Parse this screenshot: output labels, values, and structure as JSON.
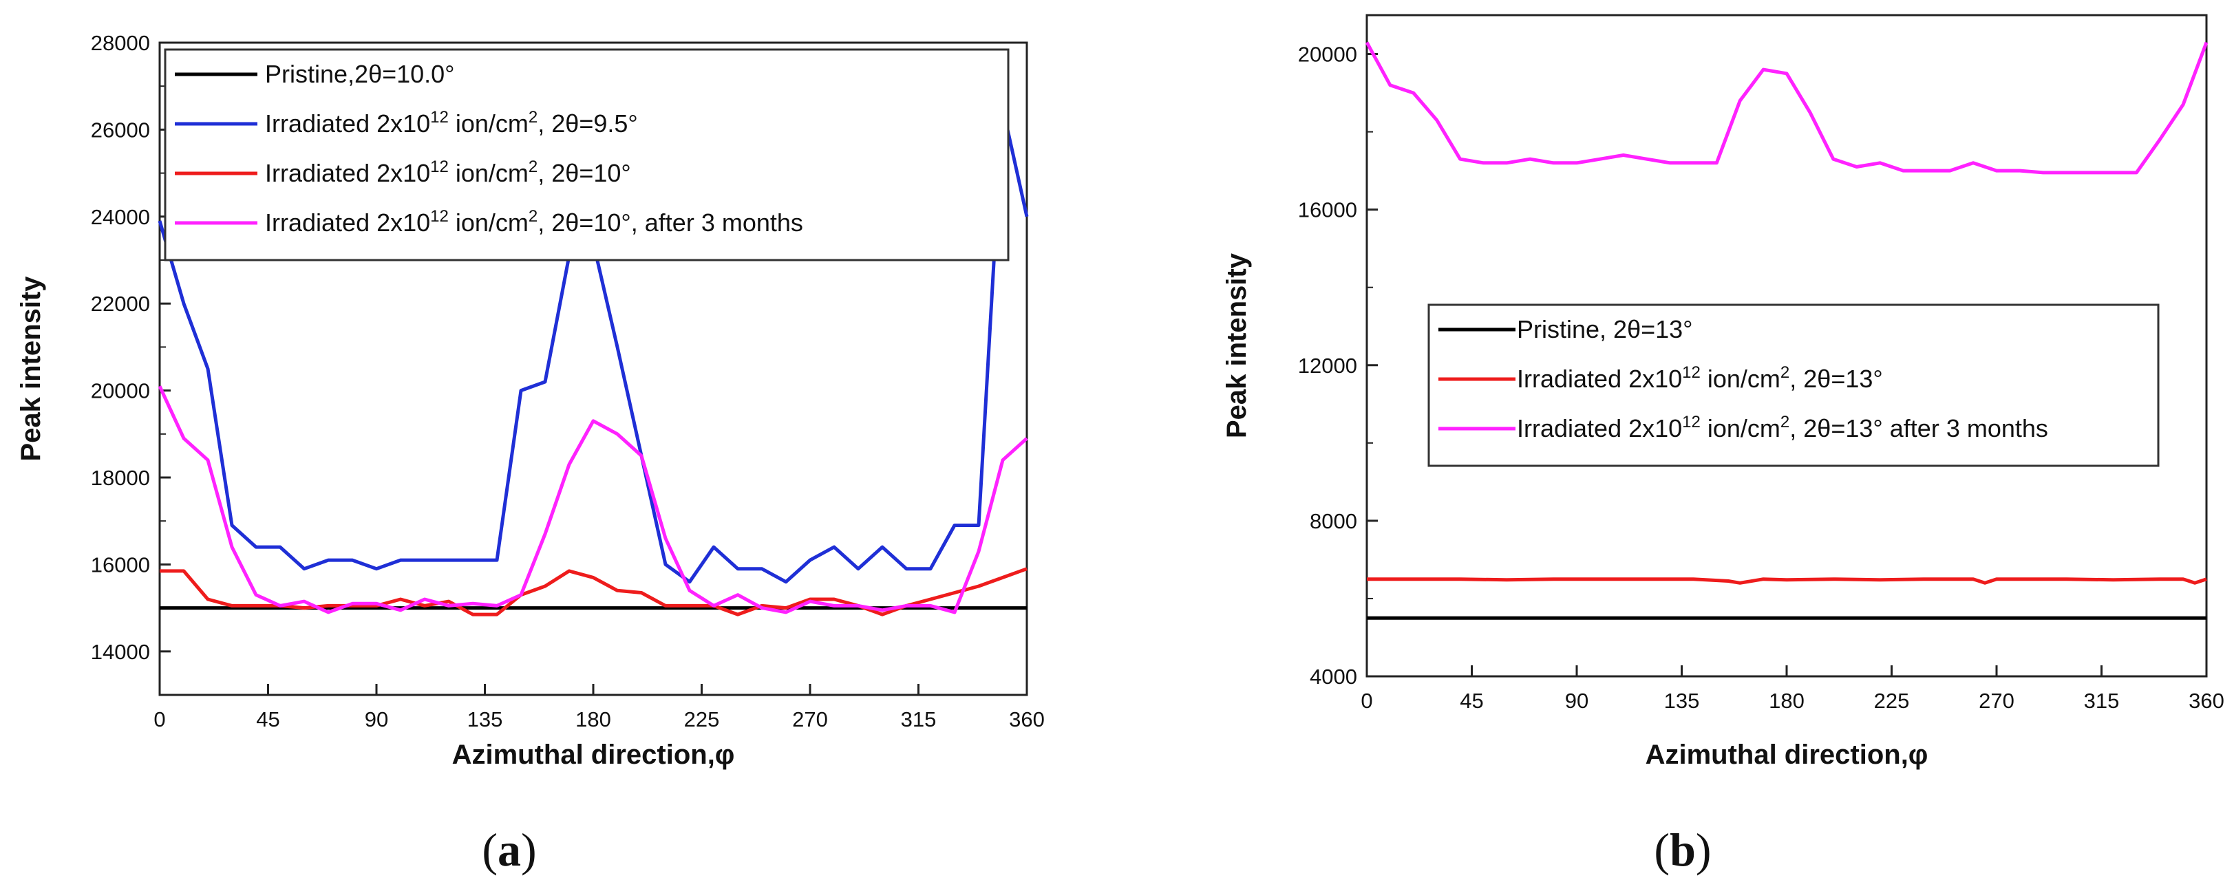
{
  "chart_data": [
    {
      "type": "line",
      "panel": "a",
      "caption_open": "(",
      "caption_letter": "a",
      "caption_close": ")",
      "xlabel": "Azimuthal direction,φ",
      "ylabel": "Peak intensity",
      "xlim": [
        0,
        360
      ],
      "ylim": [
        13000,
        28000
      ],
      "xticks": [
        0,
        45,
        90,
        135,
        180,
        225,
        270,
        315,
        360
      ],
      "yticks": [
        14000,
        16000,
        18000,
        20000,
        22000,
        24000,
        26000,
        28000
      ],
      "legend_position": "top-left",
      "series": [
        {
          "name": "Pristine,2θ=10.0°",
          "color": "#000000",
          "x": [
            0,
            360
          ],
          "y": [
            15000,
            15000
          ]
        },
        {
          "name": "Irradiated 2x10^12 ion/cm^2, 2θ=9.5°",
          "legend": {
            "pre": "Irradiated 2x10",
            "sup1": "12",
            "mid": " ion/cm",
            "sup2": "2",
            "post": ", 2θ=9.5°"
          },
          "color": "#1f2fd6",
          "x": [
            0,
            10,
            20,
            30,
            40,
            50,
            60,
            70,
            80,
            90,
            100,
            110,
            120,
            130,
            140,
            150,
            160,
            170,
            180,
            190,
            200,
            210,
            220,
            230,
            240,
            250,
            260,
            270,
            280,
            290,
            300,
            310,
            320,
            330,
            340,
            350,
            360
          ],
          "y": [
            23900,
            22000,
            20500,
            16900,
            16400,
            16400,
            15900,
            16100,
            16100,
            15900,
            16100,
            16100,
            16100,
            16100,
            16100,
            20000,
            20200,
            23100,
            23400,
            21000,
            18500,
            16000,
            15600,
            16400,
            15900,
            15900,
            15600,
            16100,
            16400,
            15900,
            16400,
            15900,
            15900,
            16900,
            16900,
            26500,
            24000
          ]
        },
        {
          "name": "Irradiated 2x10^12 ion/cm^2, 2θ=10°",
          "legend": {
            "pre": "Irradiated 2x10",
            "sup1": "12",
            "mid": " ion/cm",
            "sup2": "2",
            "post": ", 2θ=10°"
          },
          "color": "#ee1c1c",
          "x": [
            0,
            10,
            20,
            30,
            40,
            50,
            60,
            70,
            80,
            90,
            100,
            110,
            120,
            130,
            140,
            150,
            160,
            170,
            180,
            190,
            200,
            210,
            220,
            230,
            240,
            250,
            260,
            270,
            280,
            290,
            300,
            310,
            320,
            330,
            340,
            350,
            360
          ],
          "y": [
            15850,
            15850,
            15200,
            15050,
            15050,
            15050,
            15000,
            15050,
            15050,
            15050,
            15200,
            15050,
            15150,
            14850,
            14850,
            15300,
            15500,
            15850,
            15700,
            15400,
            15350,
            15050,
            15050,
            15050,
            14850,
            15050,
            15000,
            15200,
            15200,
            15050,
            14850,
            15050,
            15200,
            15350,
            15500,
            15700,
            15900
          ]
        },
        {
          "name": "Irradiated 2x10^12 ion/cm^2, 2θ=10°, after 3 months",
          "legend": {
            "pre": "Irradiated 2x10",
            "sup1": "12",
            "mid": " ion/cm",
            "sup2": "2",
            "post": ", 2θ=10°,  after 3 months"
          },
          "color": "#ff22ff",
          "x": [
            0,
            10,
            20,
            30,
            40,
            50,
            60,
            70,
            80,
            90,
            100,
            110,
            120,
            130,
            140,
            150,
            160,
            170,
            180,
            190,
            200,
            210,
            220,
            230,
            240,
            250,
            260,
            270,
            280,
            290,
            300,
            310,
            320,
            330,
            340,
            350,
            360
          ],
          "y": [
            20100,
            18900,
            18400,
            16400,
            15300,
            15050,
            15150,
            14900,
            15100,
            15100,
            14950,
            15200,
            15050,
            15100,
            15050,
            15300,
            16700,
            18300,
            19300,
            19000,
            18500,
            16600,
            15400,
            15050,
            15300,
            15000,
            14900,
            15150,
            15050,
            15050,
            14950,
            15050,
            15050,
            14900,
            16300,
            18400,
            18900
          ]
        }
      ]
    },
    {
      "type": "line",
      "panel": "b",
      "caption_open": "(",
      "caption_letter": "b",
      "caption_close": ")",
      "xlabel": "Azimuthal direction,φ",
      "ylabel": "Peak intensity",
      "xlim": [
        0,
        360
      ],
      "ylim": [
        4000,
        21000
      ],
      "xticks": [
        0,
        45,
        90,
        135,
        180,
        225,
        270,
        315,
        360
      ],
      "yticks": [
        4000,
        8000,
        12000,
        16000,
        20000
      ],
      "legend_position": "center",
      "series": [
        {
          "name": "Pristine, 2θ=13°",
          "color": "#000000",
          "x": [
            0,
            360
          ],
          "y": [
            5500,
            5500
          ]
        },
        {
          "name": "Irradiated 2x10^12 ion/cm^2, 2θ=13°",
          "legend": {
            "pre": "Irradiated 2x10",
            "sup1": "12",
            "mid": " ion/cm",
            "sup2": "2",
            "post": ", 2θ=13°"
          },
          "color": "#ee1c1c",
          "x": [
            0,
            20,
            40,
            60,
            80,
            100,
            120,
            140,
            155,
            160,
            170,
            180,
            200,
            220,
            240,
            260,
            265,
            270,
            280,
            300,
            320,
            340,
            350,
            355,
            360
          ],
          "y": [
            6500,
            6500,
            6500,
            6480,
            6500,
            6500,
            6500,
            6500,
            6450,
            6400,
            6500,
            6480,
            6500,
            6480,
            6500,
            6500,
            6400,
            6500,
            6500,
            6500,
            6480,
            6500,
            6500,
            6400,
            6500
          ]
        },
        {
          "name": "Irradiated 2x10^12 ion/cm^2, 2θ=13° after 3 months",
          "legend": {
            "pre": "Irradiated 2x10",
            "sup1": "12",
            "mid": " ion/cm",
            "sup2": "2",
            "post": ", 2θ=13° after 3 months"
          },
          "color": "#ff22ff",
          "x": [
            0,
            10,
            20,
            30,
            40,
            50,
            60,
            70,
            80,
            90,
            100,
            110,
            120,
            130,
            140,
            150,
            160,
            170,
            180,
            190,
            200,
            210,
            220,
            230,
            240,
            250,
            260,
            270,
            280,
            290,
            300,
            310,
            320,
            330,
            340,
            350,
            360
          ],
          "y": [
            20300,
            19200,
            19000,
            18300,
            17300,
            17200,
            17200,
            17300,
            17200,
            17200,
            17300,
            17400,
            17300,
            17200,
            17200,
            17200,
            18800,
            19600,
            19500,
            18500,
            17300,
            17100,
            17200,
            17000,
            17000,
            17000,
            17200,
            17000,
            17000,
            16950,
            16950,
            16950,
            16950,
            16950,
            17800,
            18700,
            20300
          ]
        }
      ]
    }
  ]
}
